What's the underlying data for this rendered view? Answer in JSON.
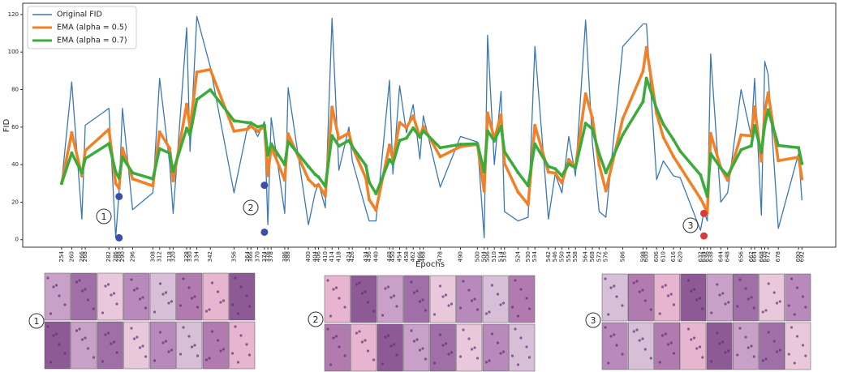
{
  "chart_data": {
    "type": "line",
    "xlabel": "Epochs",
    "ylabel": "FID",
    "x": [
      254,
      260,
      266,
      268,
      282,
      286,
      288,
      290,
      296,
      308,
      312,
      318,
      320,
      328,
      330,
      334,
      342,
      356,
      364,
      366,
      370,
      374,
      376,
      378,
      386,
      388,
      400,
      404,
      406,
      410,
      414,
      418,
      424,
      426,
      434,
      436,
      440,
      448,
      450,
      454,
      458,
      462,
      466,
      468,
      478,
      490,
      500,
      504,
      506,
      510,
      514,
      516,
      524,
      530,
      534,
      542,
      546,
      550,
      554,
      558,
      564,
      568,
      572,
      576,
      586,
      598,
      600,
      606,
      610,
      616,
      620,
      632,
      634,
      636,
      638,
      644,
      648,
      656,
      662,
      664,
      668,
      670,
      672,
      678,
      690,
      692
    ],
    "series": [
      {
        "name": "Original FID",
        "color": "#3a78b5",
        "width": 1.3,
        "values": [
          30,
          84,
          11,
          61,
          70,
          1,
          25,
          70,
          16,
          25,
          86,
          40,
          14,
          113,
          47,
          119,
          92,
          25,
          60,
          62,
          55,
          63,
          8,
          65,
          14,
          81,
          8,
          25,
          30,
          17,
          118,
          37,
          60,
          42,
          16,
          10,
          10,
          85,
          35,
          82,
          57,
          72,
          43,
          66,
          28,
          55,
          52,
          1,
          109,
          40,
          79,
          15,
          10,
          12,
          103,
          11,
          35,
          25,
          55,
          34,
          117,
          52,
          15,
          12,
          103,
          115,
          115,
          32,
          42,
          34,
          33,
          5,
          15,
          10,
          99,
          20,
          25,
          80,
          55,
          86,
          13,
          95,
          88,
          6,
          46,
          21
        ]
      },
      {
        "name": "EMA (alpha = 0.5)",
        "color": "#f28026",
        "width": 3.5,
        "values": [
          30,
          57,
          34,
          47.5,
          58.8,
          29.9,
          27.4,
          48.7,
          32.4,
          28.7,
          57.4,
          48.7,
          31.4,
          72.2,
          59.6,
          89.3,
          90.7,
          57.8,
          58.9,
          60.5,
          57.7,
          60.4,
          34.2,
          49.6,
          31.8,
          56.4,
          32.2,
          28.6,
          29.3,
          23.2,
          70.6,
          53.8,
          56.9,
          49.5,
          32.8,
          21.4,
          15.7,
          50.4,
          42.7,
          62.4,
          59.7,
          65.9,
          54.5,
          60.3,
          44.2,
          49.6,
          50.8,
          25.9,
          67.5,
          53.8,
          66.4,
          40.7,
          25.4,
          18.7,
          60.9,
          36,
          35.5,
          30.3,
          42.7,
          38.4,
          77.7,
          64.9,
          40,
          26,
          64.5,
          89.8,
          102.4,
          67.2,
          54.6,
          44.3,
          38.7,
          21.9,
          18.5,
          14.2,
          56.6,
          38.3,
          31.7,
          55.8,
          55.4,
          70.7,
          41.9,
          68.4,
          78.2,
          42.1,
          44,
          32.5
        ]
      },
      {
        "name": "EMA (alpha = 0.7)",
        "color": "#3bab3b",
        "width": 3.5,
        "values": [
          30,
          46.2,
          35.6,
          43.2,
          51.2,
          36.1,
          32.8,
          44,
          35.6,
          32.4,
          48.5,
          46,
          36.4,
          59.4,
          55.7,
          74.7,
          79.9,
          63.4,
          62.4,
          62.3,
          60.1,
          61,
          45.1,
          51.1,
          40,
          52.3,
          39,
          34.8,
          33.4,
          28.5,
          55.4,
          49.9,
          52.9,
          49.6,
          39.5,
          30.7,
          24.5,
          42.7,
          40.4,
          52.9,
          54.1,
          59.5,
          54.6,
          58,
          49,
          50.8,
          51.2,
          36.1,
          58,
          52.6,
          60.5,
          46.9,
          35.8,
          28.7,
          51,
          39,
          37.8,
          34,
          40.3,
          38.4,
          62,
          59,
          45.8,
          35.7,
          55.9,
          73.6,
          86,
          69.8,
          61.5,
          53.3,
          47.2,
          34.5,
          28.7,
          23.1,
          45.9,
          38.1,
          34.2,
          47.9,
          50,
          60.8,
          46.5,
          61.1,
          69.2,
          50.2,
          49,
          40.6
        ]
      }
    ],
    "xlim": [
      231,
      712
    ],
    "ylim": [
      -4,
      126
    ],
    "xticks": [
      254,
      260,
      266,
      268,
      282,
      286,
      288,
      290,
      296,
      308,
      312,
      318,
      320,
      328,
      330,
      334,
      342,
      356,
      364,
      366,
      370,
      374,
      376,
      378,
      386,
      388,
      400,
      404,
      406,
      410,
      414,
      418,
      424,
      426,
      434,
      436,
      440,
      448,
      450,
      454,
      458,
      462,
      466,
      468,
      478,
      490,
      500,
      504,
      506,
      510,
      514,
      516,
      524,
      530,
      534,
      542,
      546,
      550,
      554,
      558,
      564,
      568,
      572,
      576,
      586,
      598,
      600,
      606,
      610,
      616,
      620,
      632,
      634,
      636,
      638,
      644,
      648,
      656,
      662,
      664,
      668,
      670,
      672,
      678,
      690,
      692
    ],
    "yticks": [
      0,
      20,
      40,
      60,
      80,
      100,
      120
    ],
    "legend": "upper left",
    "highlights": [
      {
        "x": 288,
        "y": 23,
        "color": "#3b4fa8"
      },
      {
        "x": 288,
        "y": 1,
        "color": "#3b4fa8"
      },
      {
        "x": 374,
        "y": 29,
        "color": "#3b4fa8"
      },
      {
        "x": 374,
        "y": 4,
        "color": "#3b4fa8"
      },
      {
        "x": 634,
        "y": 14,
        "color": "#d93a3a"
      },
      {
        "x": 634,
        "y": 2,
        "color": "#d93a3a"
      }
    ],
    "annotations": [
      "1",
      "2",
      "3"
    ]
  }
}
